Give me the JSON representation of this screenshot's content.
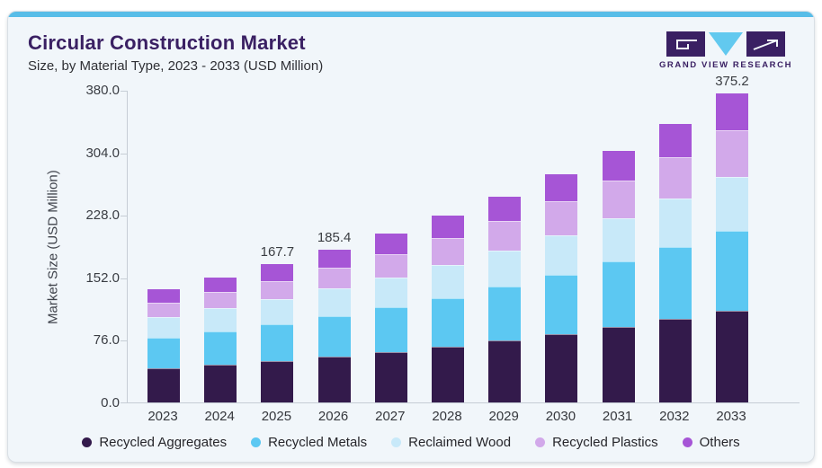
{
  "card": {
    "title": "Circular Construction Market",
    "subtitle": "Size, by Material Type, 2023 - 2033 (USD Million)",
    "accent_color": "#58bde8",
    "brand": {
      "name": "GRAND VIEW RESEARCH",
      "dark_color": "#3a2063",
      "blue_color": "#62c9ef"
    }
  },
  "chart_data": {
    "type": "bar",
    "stacked": true,
    "title": "Circular Construction Market Size, by Material Type, 2023 - 2033 (USD Million)",
    "xlabel": "",
    "ylabel": "Market Size (USD Million)",
    "ylim": [
      0,
      380
    ],
    "yticks": [
      0,
      76,
      152,
      228,
      304,
      380
    ],
    "ytick_labels": [
      "0.0",
      "76.0",
      "152.0",
      "228.0",
      "304.0",
      "380.0"
    ],
    "grid": false,
    "legend_position": "bottom",
    "categories": [
      "2023",
      "2024",
      "2025",
      "2026",
      "2027",
      "2028",
      "2029",
      "2030",
      "2031",
      "2032",
      "2033"
    ],
    "series": [
      {
        "name": "Recycled Aggregates",
        "color": "#331a4b",
        "values": [
          41.2,
          45.6,
          50.3,
          55.6,
          61.5,
          67.9,
          75.0,
          82.9,
          91.5,
          101.1,
          111.9
        ]
      },
      {
        "name": "Recycled Metals",
        "color": "#5cc8f2",
        "values": [
          36.9,
          40.5,
          44.3,
          48.9,
          53.9,
          59.3,
          65.4,
          72.0,
          79.4,
          87.6,
          97.0
        ]
      },
      {
        "name": "Reclaimed Wood",
        "color": "#c8e9f9",
        "values": [
          26.0,
          28.6,
          31.0,
          33.8,
          36.8,
          40.2,
          44.1,
          48.3,
          53.2,
          58.7,
          64.9
        ]
      },
      {
        "name": "Recycled Plastics",
        "color": "#d2a9ea",
        "values": [
          17.0,
          19.4,
          22.2,
          25.0,
          28.5,
          32.3,
          36.4,
          41.0,
          45.9,
          51.2,
          56.9
        ]
      },
      {
        "name": "Others",
        "color": "#a655d6",
        "values": [
          16.1,
          17.6,
          19.9,
          22.1,
          24.3,
          26.9,
          29.6,
          32.8,
          36.2,
          40.0,
          44.5
        ]
      }
    ],
    "totals": [
      137.2,
      151.7,
      167.7,
      185.4,
      205.0,
      226.6,
      250.5,
      277.0,
      306.2,
      338.6,
      375.2
    ],
    "bar_labels": {
      "2025": "167.7",
      "2026": "185.4",
      "2033": "375.2"
    }
  }
}
